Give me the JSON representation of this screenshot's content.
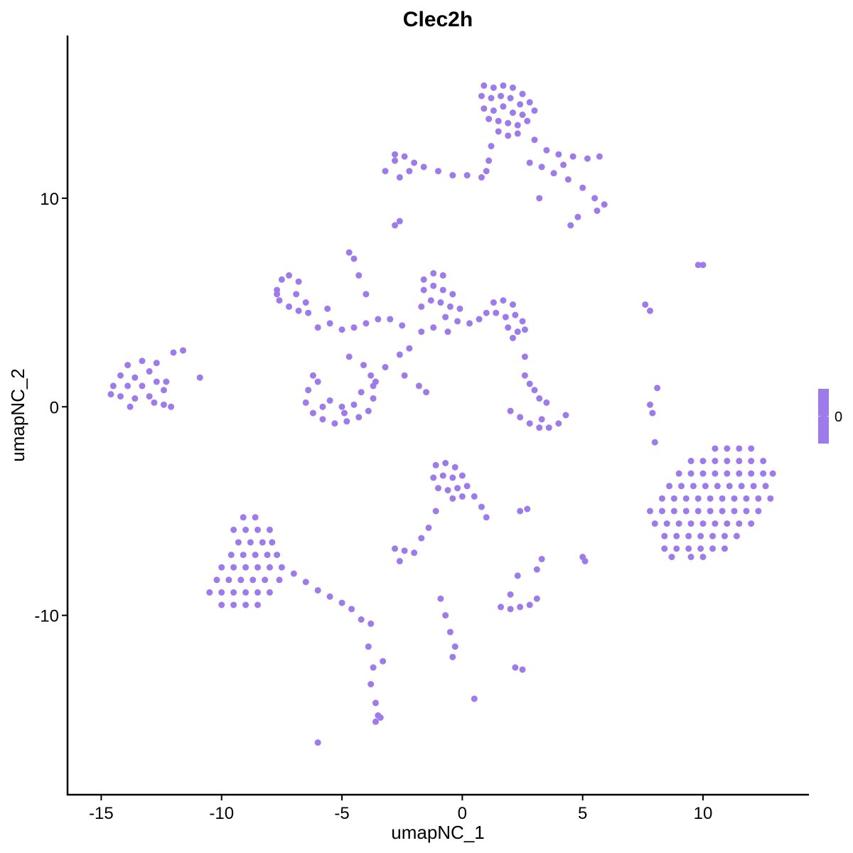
{
  "chart_data": {
    "type": "scatter",
    "title": "Clec2h",
    "xlabel": "umapNC_1",
    "ylabel": "umapNC_2",
    "xlim": [
      -16.4,
      14.4
    ],
    "ylim": [
      -18.6,
      17.8
    ],
    "xticks": [
      -15,
      -10,
      -5,
      0,
      5,
      10
    ],
    "yticks": [
      -10,
      0,
      10
    ],
    "grid": false,
    "point_color": "#9E7BEA",
    "legend": {
      "position": "right",
      "labels": [
        "0"
      ],
      "colors": [
        "#9E7BEA"
      ]
    },
    "points": [
      [
        -14.5,
        1.0
      ],
      [
        -14.2,
        1.5
      ],
      [
        -14.2,
        0.5
      ],
      [
        -13.9,
        1.0
      ],
      [
        -13.9,
        2.0
      ],
      [
        -13.6,
        1.4
      ],
      [
        -13.6,
        0.4
      ],
      [
        -13.3,
        2.2
      ],
      [
        -13.3,
        1.0
      ],
      [
        -13.0,
        1.7
      ],
      [
        -13.0,
        0.5
      ],
      [
        -12.7,
        2.1
      ],
      [
        -12.7,
        1.2
      ],
      [
        -12.4,
        0.8
      ],
      [
        -12.4,
        0.1
      ],
      [
        -12.1,
        0.0
      ],
      [
        -12.0,
        2.6
      ],
      [
        -11.6,
        2.7
      ],
      [
        -13.8,
        0.0
      ],
      [
        -12.8,
        0.2
      ],
      [
        -12.3,
        1.2
      ],
      [
        -14.6,
        0.6
      ],
      [
        -10.9,
        1.4
      ],
      [
        0.9,
        15.4
      ],
      [
        1.3,
        15.3
      ],
      [
        1.7,
        15.4
      ],
      [
        2.1,
        15.3
      ],
      [
        2.5,
        15.0
      ],
      [
        0.8,
        14.9
      ],
      [
        1.2,
        14.8
      ],
      [
        1.6,
        14.9
      ],
      [
        2.0,
        14.8
      ],
      [
        2.4,
        14.5
      ],
      [
        2.8,
        14.6
      ],
      [
        0.9,
        14.3
      ],
      [
        1.3,
        14.2
      ],
      [
        1.7,
        14.4
      ],
      [
        2.1,
        14.1
      ],
      [
        2.5,
        14.0
      ],
      [
        3.0,
        14.2
      ],
      [
        1.1,
        13.8
      ],
      [
        1.5,
        13.7
      ],
      [
        1.9,
        13.6
      ],
      [
        2.3,
        13.5
      ],
      [
        2.7,
        13.7
      ],
      [
        1.5,
        13.2
      ],
      [
        1.9,
        13.0
      ],
      [
        2.3,
        13.1
      ],
      [
        1.2,
        12.5
      ],
      [
        1.1,
        11.8
      ],
      [
        1.0,
        11.3
      ],
      [
        3.0,
        12.8
      ],
      [
        3.5,
        12.3
      ],
      [
        4.0,
        12.1
      ],
      [
        4.6,
        12.0
      ],
      [
        5.2,
        11.9
      ],
      [
        5.7,
        12.0
      ],
      [
        3.3,
        11.5
      ],
      [
        3.8,
        11.2
      ],
      [
        4.4,
        10.9
      ],
      [
        5.0,
        10.5
      ],
      [
        5.5,
        10.0
      ],
      [
        5.9,
        9.7
      ],
      [
        5.6,
        9.4
      ],
      [
        4.8,
        9.1
      ],
      [
        4.5,
        8.7
      ],
      [
        3.2,
        10.0
      ],
      [
        4.2,
        11.6
      ],
      [
        2.8,
        11.7
      ],
      [
        -3.2,
        11.3
      ],
      [
        -2.8,
        11.8
      ],
      [
        -2.4,
        12.0
      ],
      [
        -2.0,
        11.7
      ],
      [
        -1.6,
        11.5
      ],
      [
        -2.6,
        11.0
      ],
      [
        -1.0,
        11.3
      ],
      [
        -0.4,
        11.1
      ],
      [
        0.2,
        11.1
      ],
      [
        0.8,
        11.0
      ],
      [
        -2.8,
        12.1
      ],
      [
        -2.2,
        11.3
      ],
      [
        -2.8,
        8.7
      ],
      [
        -2.6,
        8.9
      ],
      [
        -7.7,
        5.6
      ],
      [
        -7.5,
        6.1
      ],
      [
        -7.2,
        6.3
      ],
      [
        -6.8,
        6.0
      ],
      [
        -7.6,
        5.1
      ],
      [
        -7.2,
        4.8
      ],
      [
        -6.8,
        4.6
      ],
      [
        -6.4,
        4.5
      ],
      [
        -6.9,
        5.4
      ],
      [
        -6.5,
        5.0
      ],
      [
        -7.7,
        5.4
      ],
      [
        -4.7,
        7.4
      ],
      [
        -4.5,
        7.1
      ],
      [
        -4.3,
        6.3
      ],
      [
        -4.0,
        5.4
      ],
      [
        -5.5,
        4.0
      ],
      [
        -5.0,
        3.7
      ],
      [
        -4.5,
        3.8
      ],
      [
        -4.0,
        4.0
      ],
      [
        -3.5,
        4.2
      ],
      [
        -3.0,
        4.2
      ],
      [
        -2.5,
        3.9
      ],
      [
        -2.2,
        2.8
      ],
      [
        -2.6,
        2.5
      ],
      [
        -3.2,
        1.9
      ],
      [
        -3.6,
        1.2
      ],
      [
        -2.4,
        1.5
      ],
      [
        -1.8,
        1.0
      ],
      [
        -1.5,
        0.7
      ],
      [
        -6.0,
        3.8
      ],
      [
        -5.6,
        4.7
      ],
      [
        -4.7,
        2.4
      ],
      [
        -4.1,
        2.0
      ],
      [
        -1.7,
        3.6
      ],
      [
        -1.2,
        3.8
      ],
      [
        -0.6,
        3.6
      ],
      [
        -1.6,
        6.1
      ],
      [
        -1.2,
        6.4
      ],
      [
        -0.8,
        6.3
      ],
      [
        -1.6,
        5.6
      ],
      [
        -1.2,
        5.8
      ],
      [
        -0.8,
        5.6
      ],
      [
        -0.4,
        5.4
      ],
      [
        -1.3,
        5.1
      ],
      [
        -0.9,
        5.0
      ],
      [
        -0.5,
        4.8
      ],
      [
        -0.1,
        4.7
      ],
      [
        -1.7,
        4.8
      ],
      [
        -0.7,
        4.3
      ],
      [
        -0.2,
        4.1
      ],
      [
        0.3,
        4.0
      ],
      [
        0.7,
        4.2
      ],
      [
        1.0,
        4.5
      ],
      [
        1.3,
        5.0
      ],
      [
        1.7,
        5.1
      ],
      [
        2.1,
        4.9
      ],
      [
        1.4,
        4.5
      ],
      [
        1.8,
        4.3
      ],
      [
        2.2,
        4.4
      ],
      [
        2.5,
        4.1
      ],
      [
        1.9,
        3.8
      ],
      [
        2.3,
        3.6
      ],
      [
        2.6,
        3.7
      ],
      [
        2.1,
        3.3
      ],
      [
        2.6,
        2.4
      ],
      [
        -6.4,
        0.8
      ],
      [
        -6.5,
        0.2
      ],
      [
        -6.2,
        -0.3
      ],
      [
        -5.8,
        -0.6
      ],
      [
        -5.3,
        -0.8
      ],
      [
        -4.8,
        -0.7
      ],
      [
        -4.3,
        -0.5
      ],
      [
        -3.9,
        -0.2
      ],
      [
        -3.7,
        0.4
      ],
      [
        -3.7,
        1.0
      ],
      [
        -3.8,
        1.5
      ],
      [
        -6.0,
        1.2
      ],
      [
        -5.5,
        0.3
      ],
      [
        -5.0,
        0.0
      ],
      [
        -4.5,
        0.1
      ],
      [
        -4.2,
        0.7
      ],
      [
        -5.8,
        0.0
      ],
      [
        -4.9,
        -0.3
      ],
      [
        -6.2,
        1.5
      ],
      [
        2.0,
        -0.2
      ],
      [
        2.4,
        -0.5
      ],
      [
        2.8,
        -0.8
      ],
      [
        3.2,
        -1.0
      ],
      [
        3.6,
        -1.0
      ],
      [
        4.0,
        -0.8
      ],
      [
        4.3,
        -0.4
      ],
      [
        3.0,
        0.8
      ],
      [
        3.2,
        0.4
      ],
      [
        3.5,
        0.2
      ],
      [
        2.8,
        1.1
      ],
      [
        2.6,
        1.5
      ],
      [
        3.3,
        -0.6
      ],
      [
        10.5,
        -2.0
      ],
      [
        11.0,
        -2.0
      ],
      [
        11.5,
        -2.0
      ],
      [
        12.0,
        -2.0
      ],
      [
        9.5,
        -2.6
      ],
      [
        10.0,
        -2.6
      ],
      [
        10.5,
        -2.6
      ],
      [
        11.0,
        -2.6
      ],
      [
        11.5,
        -2.6
      ],
      [
        12.0,
        -2.6
      ],
      [
        12.5,
        -2.6
      ],
      [
        9.0,
        -3.2
      ],
      [
        9.5,
        -3.2
      ],
      [
        10.0,
        -3.2
      ],
      [
        10.5,
        -3.2
      ],
      [
        11.0,
        -3.2
      ],
      [
        11.5,
        -3.2
      ],
      [
        12.0,
        -3.2
      ],
      [
        12.5,
        -3.2
      ],
      [
        12.9,
        -3.2
      ],
      [
        8.6,
        -3.8
      ],
      [
        9.1,
        -3.8
      ],
      [
        9.6,
        -3.8
      ],
      [
        10.1,
        -3.8
      ],
      [
        10.6,
        -3.8
      ],
      [
        11.1,
        -3.8
      ],
      [
        11.6,
        -3.8
      ],
      [
        12.1,
        -3.8
      ],
      [
        12.6,
        -3.8
      ],
      [
        8.3,
        -4.4
      ],
      [
        8.8,
        -4.4
      ],
      [
        9.3,
        -4.4
      ],
      [
        9.8,
        -4.4
      ],
      [
        10.3,
        -4.4
      ],
      [
        10.8,
        -4.4
      ],
      [
        11.3,
        -4.4
      ],
      [
        11.8,
        -4.4
      ],
      [
        12.3,
        -4.4
      ],
      [
        12.8,
        -4.4
      ],
      [
        7.8,
        -5.0
      ],
      [
        8.3,
        -5.0
      ],
      [
        8.8,
        -5.0
      ],
      [
        9.3,
        -5.0
      ],
      [
        9.8,
        -5.0
      ],
      [
        10.3,
        -5.0
      ],
      [
        10.8,
        -5.0
      ],
      [
        11.3,
        -5.0
      ],
      [
        11.8,
        -5.0
      ],
      [
        12.3,
        -5.0
      ],
      [
        8.0,
        -5.6
      ],
      [
        8.5,
        -5.6
      ],
      [
        9.0,
        -5.6
      ],
      [
        9.5,
        -5.6
      ],
      [
        10.0,
        -5.6
      ],
      [
        10.5,
        -5.6
      ],
      [
        11.0,
        -5.6
      ],
      [
        11.5,
        -5.6
      ],
      [
        12.0,
        -5.6
      ],
      [
        8.4,
        -6.2
      ],
      [
        8.9,
        -6.2
      ],
      [
        9.4,
        -6.2
      ],
      [
        9.9,
        -6.2
      ],
      [
        10.4,
        -6.2
      ],
      [
        10.9,
        -6.2
      ],
      [
        11.4,
        -6.2
      ],
      [
        8.4,
        -6.8
      ],
      [
        8.9,
        -6.8
      ],
      [
        9.4,
        -6.8
      ],
      [
        9.9,
        -6.8
      ],
      [
        10.4,
        -6.8
      ],
      [
        10.9,
        -6.8
      ],
      [
        8.7,
        -7.2
      ],
      [
        9.5,
        -7.2
      ],
      [
        10.0,
        -7.2
      ],
      [
        -9.1,
        -5.3
      ],
      [
        -8.6,
        -5.3
      ],
      [
        -9.5,
        -5.9
      ],
      [
        -9.0,
        -5.9
      ],
      [
        -8.5,
        -5.9
      ],
      [
        -8.0,
        -5.9
      ],
      [
        -9.3,
        -6.5
      ],
      [
        -8.8,
        -6.5
      ],
      [
        -8.3,
        -6.5
      ],
      [
        -7.9,
        -6.5
      ],
      [
        -9.6,
        -7.1
      ],
      [
        -9.1,
        -7.1
      ],
      [
        -8.6,
        -7.1
      ],
      [
        -8.1,
        -7.1
      ],
      [
        -7.7,
        -7.1
      ],
      [
        -10.0,
        -7.7
      ],
      [
        -9.5,
        -7.7
      ],
      [
        -9.0,
        -7.7
      ],
      [
        -8.5,
        -7.7
      ],
      [
        -8.0,
        -7.7
      ],
      [
        -7.5,
        -7.7
      ],
      [
        -10.2,
        -8.3
      ],
      [
        -9.7,
        -8.3
      ],
      [
        -9.2,
        -8.3
      ],
      [
        -8.7,
        -8.3
      ],
      [
        -8.2,
        -8.3
      ],
      [
        -7.6,
        -8.3
      ],
      [
        -10.5,
        -8.9
      ],
      [
        -10.0,
        -8.9
      ],
      [
        -9.5,
        -8.9
      ],
      [
        -9.0,
        -8.9
      ],
      [
        -8.5,
        -8.9
      ],
      [
        -8.0,
        -8.9
      ],
      [
        -10.0,
        -9.5
      ],
      [
        -9.5,
        -9.5
      ],
      [
        -9.0,
        -9.5
      ],
      [
        -8.5,
        -9.5
      ],
      [
        -7.0,
        -8.0
      ],
      [
        -6.5,
        -8.4
      ],
      [
        -6.0,
        -8.8
      ],
      [
        -5.5,
        -9.1
      ],
      [
        -5.0,
        -9.4
      ],
      [
        -4.6,
        -9.7
      ],
      [
        -4.2,
        -10.2
      ],
      [
        -3.8,
        -10.4
      ],
      [
        -3.9,
        -11.5
      ],
      [
        -3.7,
        -12.5
      ],
      [
        -3.8,
        -13.3
      ],
      [
        -3.6,
        -14.2
      ],
      [
        -3.5,
        -14.8
      ],
      [
        -3.6,
        -15.1
      ],
      [
        -3.4,
        -14.9
      ],
      [
        -3.3,
        -12.2
      ],
      [
        -1.1,
        -2.8
      ],
      [
        -0.7,
        -2.7
      ],
      [
        -0.3,
        -2.9
      ],
      [
        -1.2,
        -3.4
      ],
      [
        -0.8,
        -3.3
      ],
      [
        -0.4,
        -3.4
      ],
      [
        0.0,
        -3.3
      ],
      [
        -1.0,
        -3.9
      ],
      [
        -0.6,
        -4.0
      ],
      [
        -0.2,
        -3.9
      ],
      [
        0.2,
        -3.8
      ],
      [
        -0.4,
        -4.4
      ],
      [
        0.0,
        -4.3
      ],
      [
        0.5,
        -4.3
      ],
      [
        0.8,
        -4.8
      ],
      [
        1.0,
        -5.3
      ],
      [
        -1.1,
        -5.0
      ],
      [
        -1.4,
        -5.8
      ],
      [
        -1.7,
        -6.3
      ],
      [
        -2.8,
        -6.8
      ],
      [
        -2.4,
        -6.9
      ],
      [
        -2.0,
        -7.0
      ],
      [
        -2.6,
        -7.4
      ],
      [
        -0.9,
        -9.2
      ],
      [
        -0.7,
        -10.0
      ],
      [
        -0.5,
        -10.8
      ],
      [
        -0.3,
        -11.5
      ],
      [
        -0.4,
        -12.0
      ],
      [
        1.6,
        -9.6
      ],
      [
        2.0,
        -9.7
      ],
      [
        2.4,
        -9.6
      ],
      [
        2.8,
        -9.5
      ],
      [
        3.1,
        -9.2
      ],
      [
        2.0,
        -9.0
      ],
      [
        2.2,
        -12.5
      ],
      [
        2.5,
        -12.6
      ],
      [
        -6.0,
        -16.1
      ],
      [
        0.5,
        -14.0
      ],
      [
        9.8,
        6.8
      ],
      [
        10.0,
        6.8
      ],
      [
        7.6,
        4.9
      ],
      [
        7.8,
        4.6
      ],
      [
        7.8,
        0.1
      ],
      [
        7.9,
        -0.3
      ],
      [
        8.1,
        0.9
      ],
      [
        8.0,
        -1.7
      ],
      [
        2.7,
        -4.9
      ],
      [
        2.4,
        -5.0
      ],
      [
        5.0,
        -7.2
      ],
      [
        5.1,
        -7.4
      ],
      [
        3.3,
        -7.3
      ],
      [
        3.1,
        -7.8
      ],
      [
        2.3,
        -8.1
      ]
    ]
  }
}
